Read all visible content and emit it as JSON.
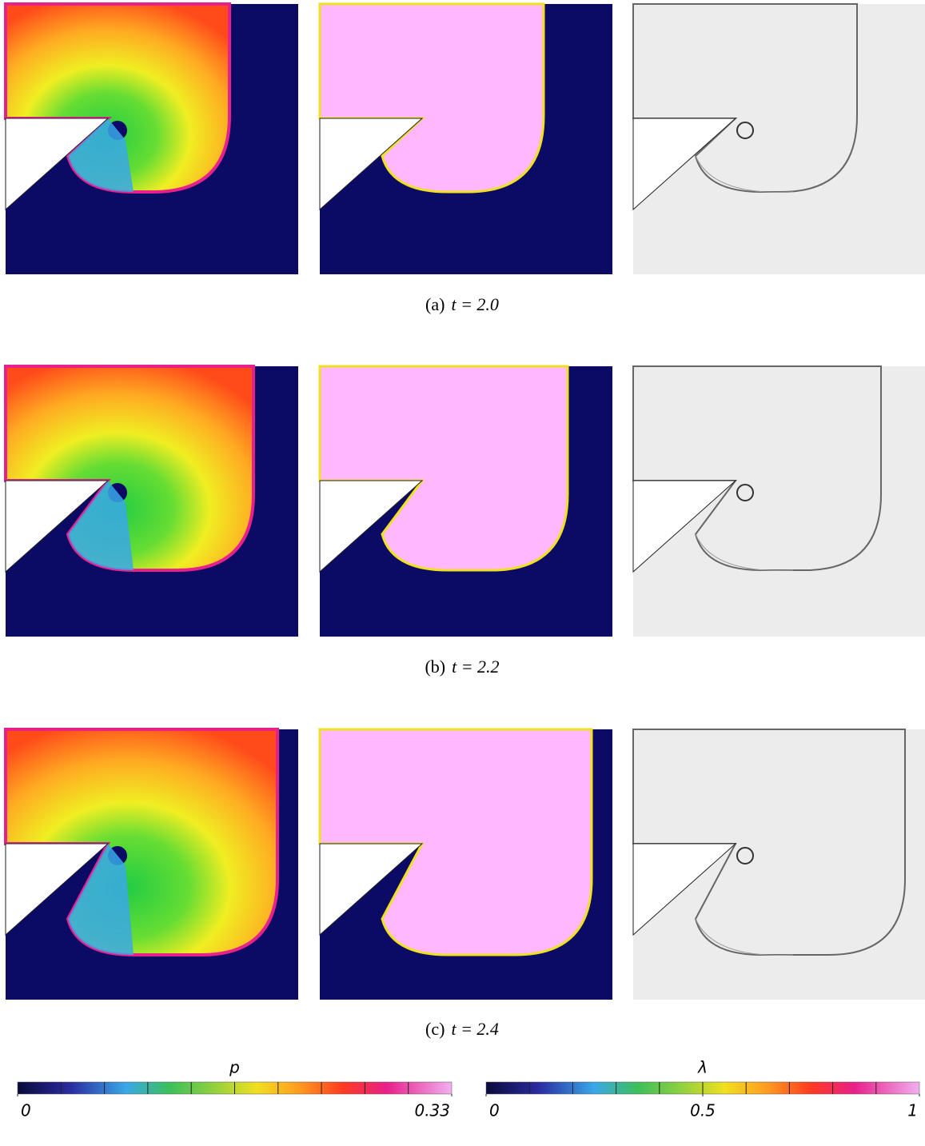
{
  "panels": [
    {
      "label": "(a)",
      "caption": "t = 2.0"
    },
    {
      "label": "(b)",
      "caption": "t = 2.2"
    },
    {
      "label": "(c)",
      "caption": "t = 2.4"
    }
  ],
  "colorbars": [
    {
      "title": "p",
      "lim": [
        0,
        0.33
      ],
      "ticks": [
        0,
        0.33
      ]
    },
    {
      "title": "λ",
      "lim": [
        0,
        1
      ],
      "ticks": [
        0,
        0.5,
        1
      ]
    }
  ]
}
